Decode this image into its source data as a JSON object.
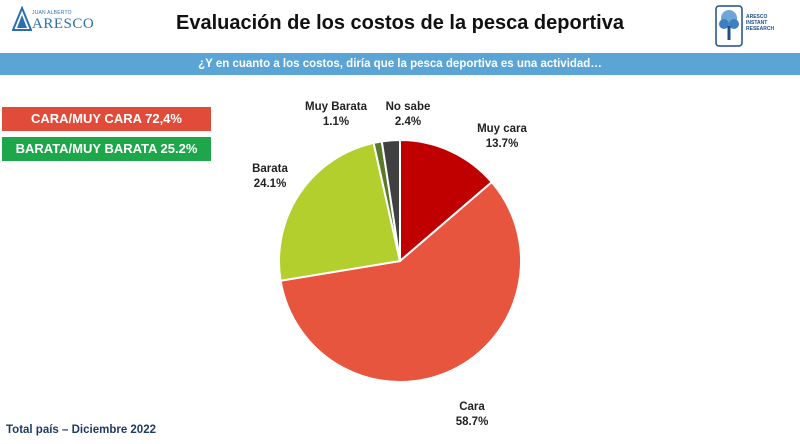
{
  "header": {
    "title": "Evaluación de los costos de la pesca deportiva",
    "subtitle": "¿Y en cuanto a los costos, diría que la pesca deportiva es una actividad…",
    "logo_left_small": "JUAN ALBERTO",
    "logo_left_big": "ARESCO",
    "logo_right_text": [
      "ARESCO",
      "INSTANT",
      "RESEARCH"
    ]
  },
  "badges": {
    "cara": "CARA/MUY CARA 72,4%",
    "barata": "BARATA/MUY BARATA 25.2%"
  },
  "footer": "Total país – Diciembre 2022",
  "colors": {
    "accent_bar": "#5ba4d6",
    "badge_red": "#e04b3a",
    "badge_green": "#1ea64a"
  },
  "chart_data": {
    "type": "pie",
    "title": "",
    "slices": [
      {
        "name": "Muy cara",
        "value": 13.7,
        "label_value": "13.7%",
        "color": "#c00000"
      },
      {
        "name": "Cara",
        "value": 58.7,
        "label_value": "58.7%",
        "color": "#e8553e"
      },
      {
        "name": "Barata",
        "value": 24.1,
        "label_value": "24.1%",
        "color": "#b2cf2e"
      },
      {
        "name": "Muy Barata",
        "value": 1.1,
        "label_value": "1.1%",
        "color": "#5a7a2a"
      },
      {
        "name": "No sabe",
        "value": 2.4,
        "label_value": "2.4%",
        "color": "#404040"
      }
    ],
    "legend": "none"
  }
}
